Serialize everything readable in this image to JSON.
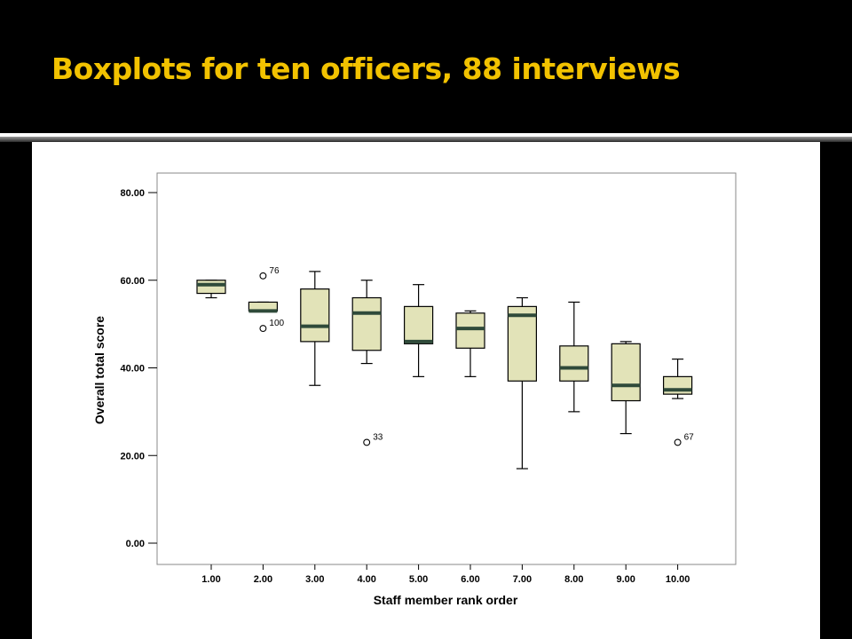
{
  "slide": {
    "title": "Boxplots for ten officers, 88 interviews"
  },
  "colors": {
    "title": "#F2C200",
    "background": "#000000",
    "box_fill": "#E2E3B8",
    "median": "#2F4A3A"
  },
  "chart_data": {
    "type": "box",
    "title": "",
    "xlabel": "Staff member rank order",
    "ylabel": "Overall total score",
    "categories": [
      "1.00",
      "2.00",
      "3.00",
      "4.00",
      "5.00",
      "6.00",
      "7.00",
      "8.00",
      "9.00",
      "10.00"
    ],
    "yticks": [
      "0.00",
      "20.00",
      "40.00",
      "60.00",
      "80.00"
    ],
    "ylim": [
      0,
      80
    ],
    "grid": false,
    "legend": "none",
    "boxes": [
      {
        "category": "1.00",
        "whisker_low": 56,
        "q1": 57,
        "median": 59,
        "q3": 60,
        "whisker_high": 60
      },
      {
        "category": "2.00",
        "whisker_low": 53,
        "q1": 53,
        "median": 53,
        "q3": 55,
        "whisker_high": 55
      },
      {
        "category": "3.00",
        "whisker_low": 36,
        "q1": 46,
        "median": 49.5,
        "q3": 58,
        "whisker_high": 62
      },
      {
        "category": "4.00",
        "whisker_low": 41,
        "q1": 44,
        "median": 52.5,
        "q3": 56,
        "whisker_high": 60
      },
      {
        "category": "5.00",
        "whisker_low": 38,
        "q1": 45.5,
        "median": 46,
        "q3": 54,
        "whisker_high": 59
      },
      {
        "category": "6.00",
        "whisker_low": 38,
        "q1": 44.5,
        "median": 49,
        "q3": 52.5,
        "whisker_high": 53
      },
      {
        "category": "7.00",
        "whisker_low": 17,
        "q1": 37,
        "median": 52,
        "q3": 54,
        "whisker_high": 56
      },
      {
        "category": "8.00",
        "whisker_low": 30,
        "q1": 37,
        "median": 40,
        "q3": 45,
        "whisker_high": 55
      },
      {
        "category": "9.00",
        "whisker_low": 25,
        "q1": 32.5,
        "median": 36,
        "q3": 45.5,
        "whisker_high": 46
      },
      {
        "category": "10.00",
        "whisker_low": 33,
        "q1": 34,
        "median": 35,
        "q3": 38,
        "whisker_high": 42
      }
    ],
    "outliers": [
      {
        "category": "2.00",
        "value": 61,
        "label": "76"
      },
      {
        "category": "2.00",
        "value": 49,
        "label": "100"
      },
      {
        "category": "4.00",
        "value": 23,
        "label": "33"
      },
      {
        "category": "10.00",
        "value": 23,
        "label": "67"
      }
    ]
  }
}
